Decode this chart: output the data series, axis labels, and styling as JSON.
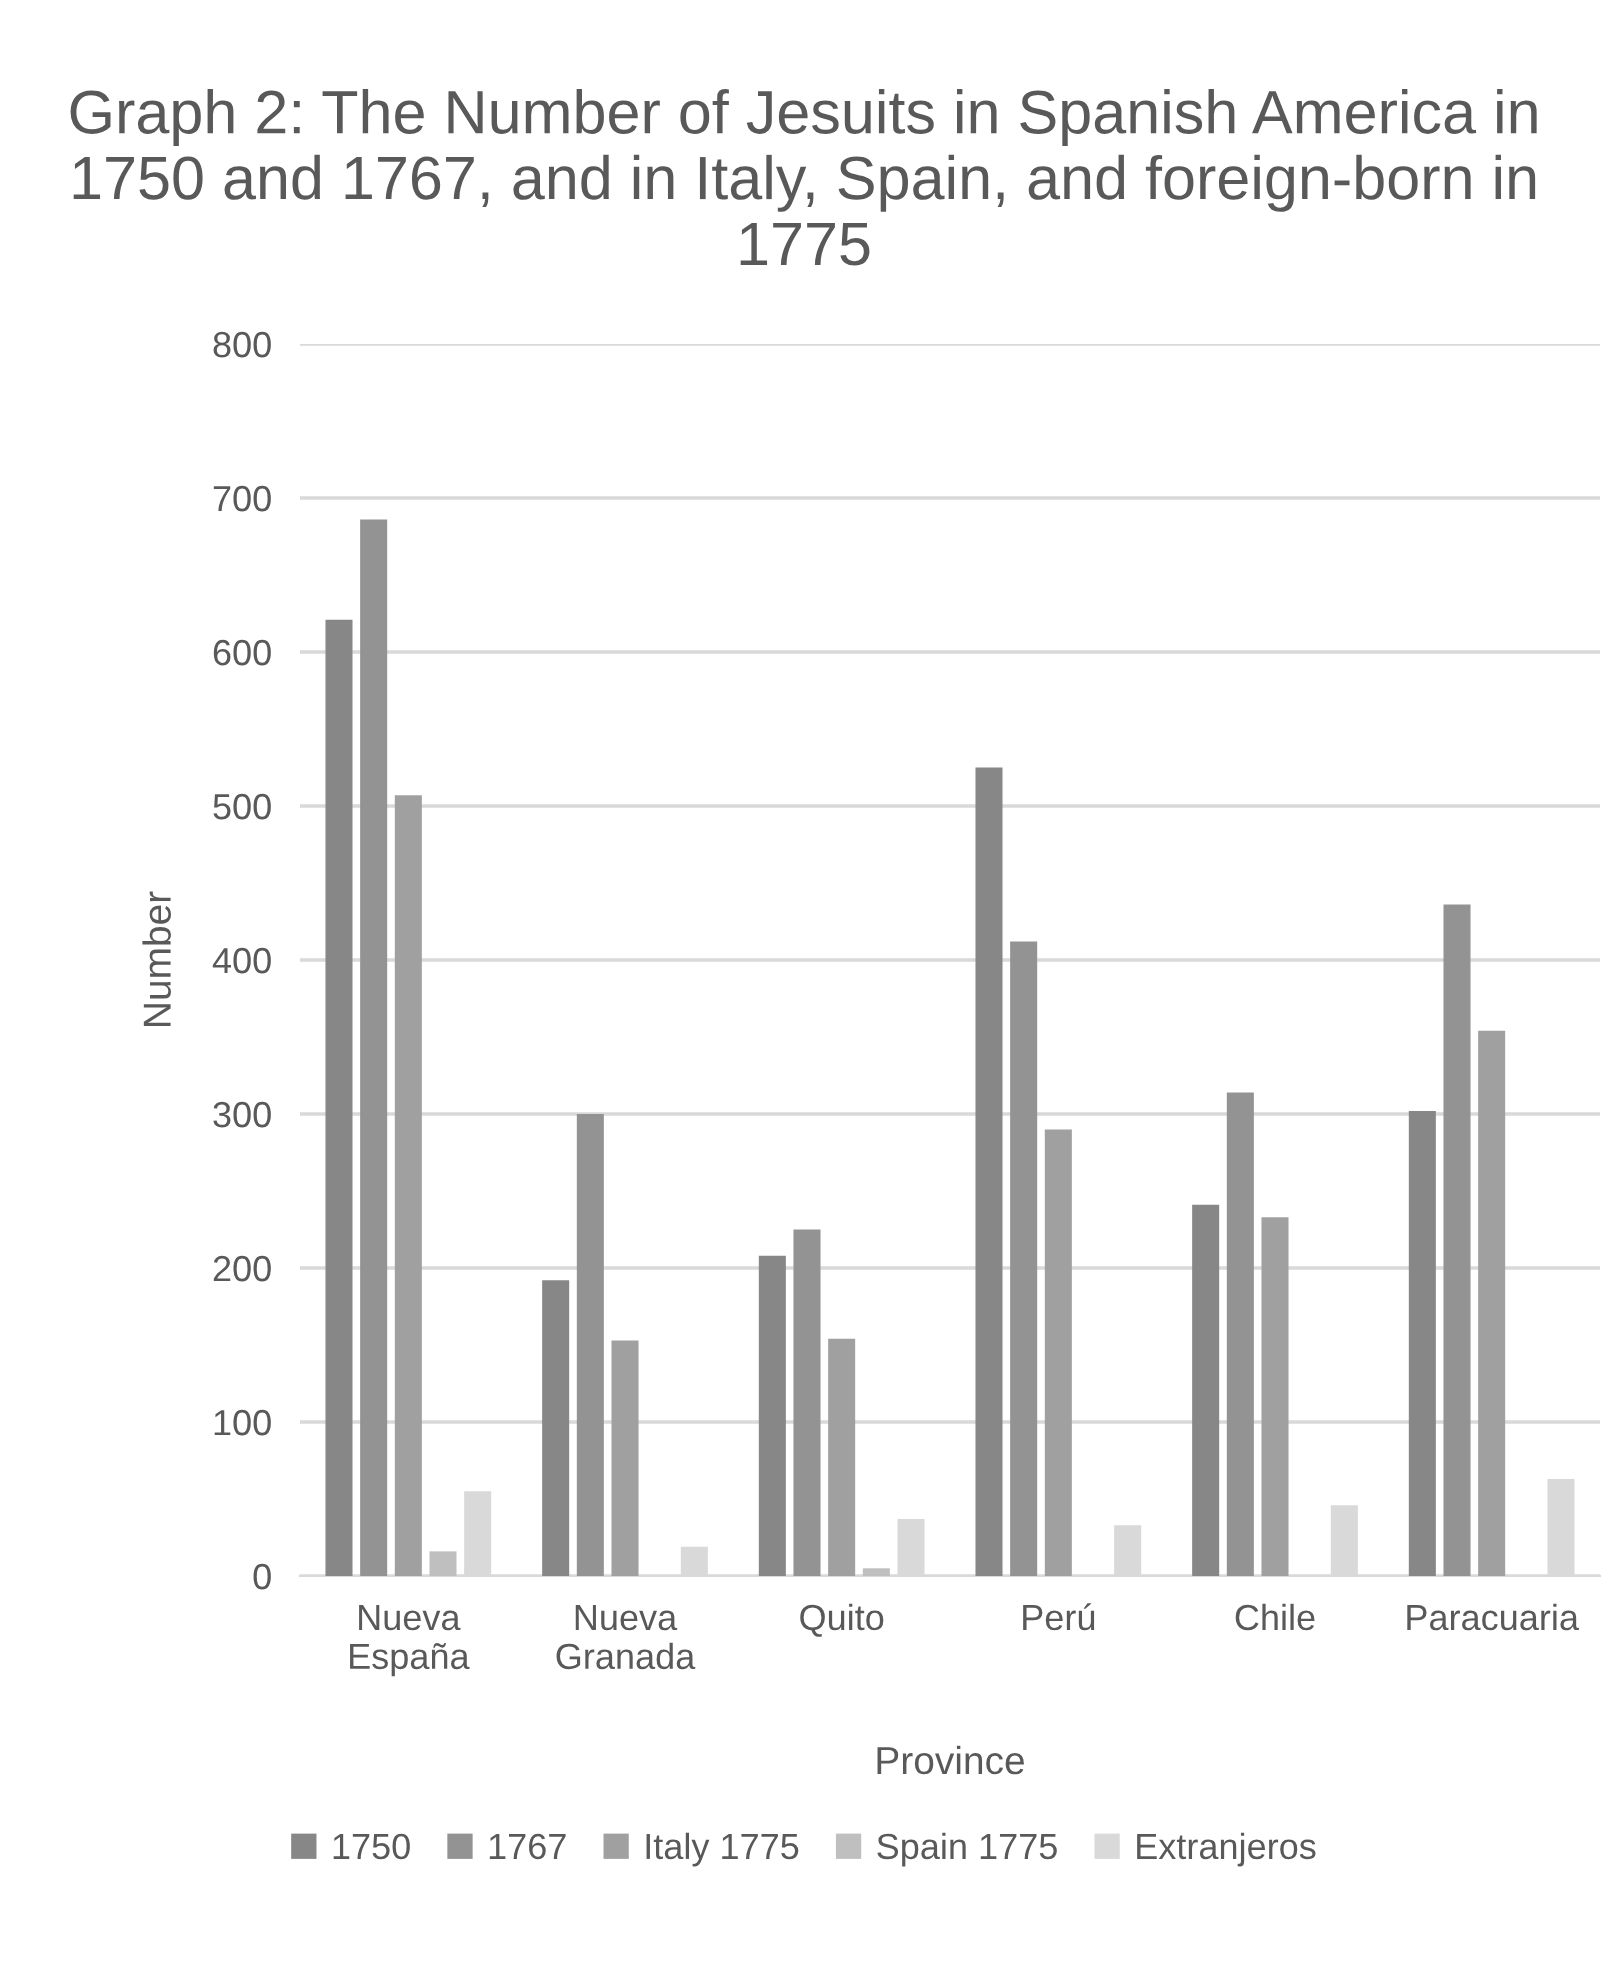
{
  "chart_data": {
    "type": "bar",
    "title": "Graph 2: The Number of Jesuits in Spanish America in 1750 and 1767, and in Italy, Spain, and foreign-born in 1775",
    "xlabel": "Province",
    "ylabel": "Number",
    "categories": [
      "Nueva\nEspaña",
      "Nueva\nGranada",
      "Quito",
      "Perú",
      "Chile",
      "Paracuaria"
    ],
    "series": [
      {
        "name": "1750",
        "color": "#878787",
        "values": [
          621,
          192,
          208,
          525,
          241,
          302
        ]
      },
      {
        "name": "1767",
        "color": "#939393",
        "values": [
          686,
          300,
          225,
          412,
          314,
          436
        ]
      },
      {
        "name": "Italy 1775",
        "color": "#a0a0a0",
        "values": [
          507,
          153,
          154,
          290,
          233,
          354
        ]
      },
      {
        "name": "Spain 1775",
        "color": "#bfbfbf",
        "values": [
          16,
          null,
          5,
          0,
          0,
          0
        ]
      },
      {
        "name": "Extranjeros",
        "color": "#d9d9d9",
        "values": [
          55,
          19,
          37,
          33,
          46,
          63
        ]
      }
    ],
    "ylim": [
      0,
      800
    ],
    "yticks": [
      0,
      100,
      200,
      300,
      400,
      500,
      600,
      700,
      800
    ],
    "grid": "y",
    "legend": "bottom"
  }
}
